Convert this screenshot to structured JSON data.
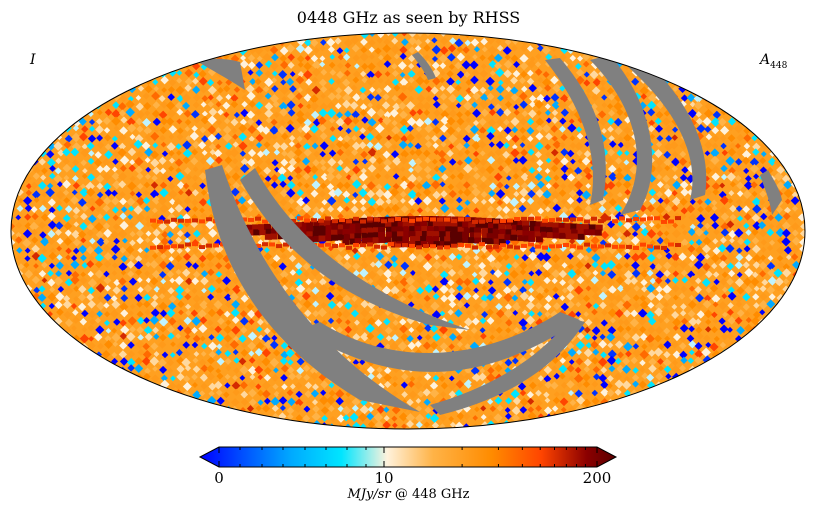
{
  "title": "0448 GHz as seen by RHSS",
  "map": {
    "projection": "mollweide",
    "left_label": "I",
    "right_label_main": "A",
    "right_label_sub": "448",
    "mask_color": "#808080"
  },
  "colorbar": {
    "ticks": [
      "0",
      "10",
      "200"
    ],
    "tick_values": [
      0,
      10,
      200
    ],
    "scale": "hist-equalized",
    "unit_italic": "MJy/sr",
    "unit_rest": "@ 448 GHz",
    "colors": [
      "#0000ff",
      "#00aaff",
      "#00e5ff",
      "#fff2dc",
      "#ffb347",
      "#ff8c00",
      "#ff4500",
      "#8b0000",
      "#5a0000"
    ]
  }
}
